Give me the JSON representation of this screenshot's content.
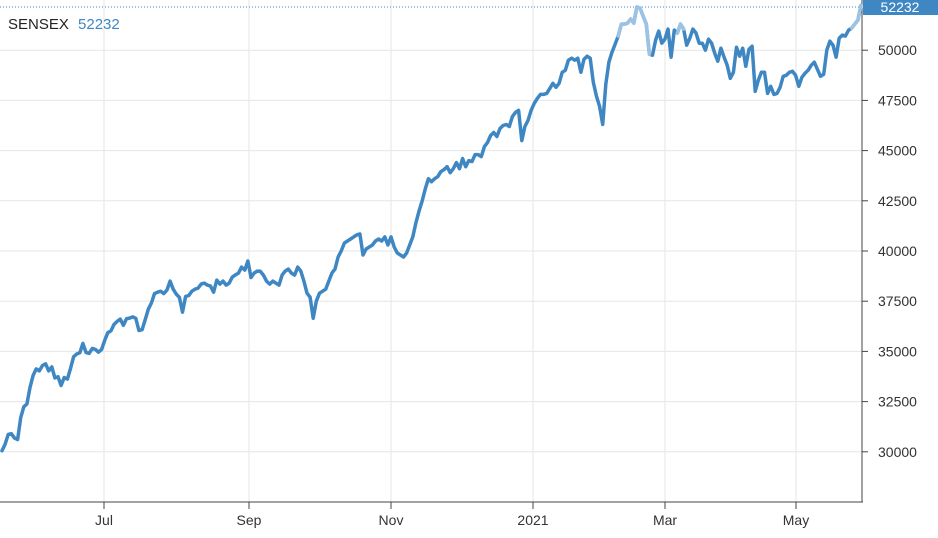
{
  "legend": {
    "symbol": "SENSEX",
    "value": "52232"
  },
  "last_price_badge": "52232",
  "colors": {
    "line": "#3f87c3",
    "line_highlight": "#9cc3e3",
    "badge_bg": "#3f87c3",
    "grid": "#e6e6e6",
    "axis": "#444444",
    "dotted_ref": "#3f87c3",
    "text": "#333333"
  },
  "chart_data": {
    "type": "line",
    "title": "",
    "xlabel": "",
    "ylabel": "",
    "ylim": [
      27500,
      52500
    ],
    "grid": true,
    "legend_placement": "top-left",
    "y_axis_side": "right",
    "y_ticks": [
      "30000",
      "32500",
      "35000",
      "37500",
      "40000",
      "42500",
      "45000",
      "47500",
      "50000"
    ],
    "x_ticks": [
      "Jul",
      "Sep",
      "Nov",
      "2021",
      "Mar",
      "May"
    ],
    "series": [
      {
        "name": "SENSEX",
        "values": [
          30050,
          30380,
          30860,
          30900,
          30690,
          30610,
          31700,
          32240,
          32380,
          33200,
          33800,
          34130,
          34030,
          34300,
          34380,
          34030,
          34230,
          33680,
          33740,
          33300,
          33700,
          33620,
          34150,
          34730,
          34870,
          34930,
          35400,
          34950,
          34900,
          35150,
          35100,
          34960,
          35100,
          35550,
          35930,
          36020,
          36340,
          36500,
          36610,
          36300,
          36630,
          36660,
          36720,
          36650,
          36040,
          36080,
          36580,
          37100,
          37410,
          37880,
          37950,
          38000,
          37880,
          38060,
          38500,
          38100,
          37850,
          37690,
          36950,
          37740,
          37780,
          38000,
          38100,
          38150,
          38350,
          38400,
          38300,
          38250,
          37950,
          38550,
          38350,
          38500,
          38300,
          38400,
          38700,
          38810,
          38900,
          39200,
          39050,
          39500,
          38680,
          38900,
          39000,
          38990,
          38800,
          38500,
          38350,
          38500,
          38400,
          38300,
          38800,
          39000,
          39100,
          38900,
          38800,
          39200,
          39000,
          38500,
          37900,
          37700,
          36650,
          37500,
          37900,
          38000,
          38100,
          38500,
          38900,
          39100,
          39700,
          40000,
          40400,
          40500,
          40600,
          40700,
          40800,
          40850,
          39800,
          40100,
          40200,
          40300,
          40500,
          40600,
          40500,
          40700,
          40300,
          40700,
          40200,
          39900,
          39800,
          39700,
          39900,
          40300,
          40700,
          41400,
          42000,
          42500,
          43100,
          43600,
          43450,
          43600,
          43700,
          43950,
          44050,
          44200,
          43900,
          44100,
          44400,
          44100,
          44600,
          44200,
          44500,
          44450,
          44800,
          44800,
          44700,
          45200,
          45400,
          45750,
          45900,
          45700,
          46100,
          46250,
          46300,
          46200,
          46700,
          46900,
          47000,
          45500,
          46200,
          46500,
          47000,
          47350,
          47600,
          47800,
          47800,
          47850,
          48100,
          48350,
          48150,
          48350,
          48900,
          49000,
          49500,
          49600,
          49500,
          49600,
          48900,
          49550,
          49700,
          49600,
          48400,
          47700,
          47200,
          46300,
          48300,
          49400,
          49900,
          50300,
          50700,
          51300,
          51300,
          51350,
          51550,
          51350,
          52150,
          52100,
          51700,
          51300,
          49800,
          49750,
          50500,
          50950,
          50350,
          50550,
          51050,
          49650,
          51000,
          50850,
          51300,
          51050,
          50250,
          50600,
          51050,
          50850,
          50350,
          50350,
          50000,
          50550,
          50350,
          49850,
          49450,
          50100,
          49650,
          49250,
          48600,
          48900,
          50150,
          49700,
          50100,
          49200,
          50050,
          50200,
          47950,
          48500,
          48900,
          48900,
          47850,
          48200,
          47800,
          47850,
          48150,
          48700,
          48750,
          48900,
          48950,
          48750,
          48200,
          48650,
          48850,
          49000,
          49250,
          49400,
          49050,
          48700,
          48800,
          50000,
          50450,
          50250,
          49650,
          50600,
          50750,
          50700,
          51000,
          51100,
          51300,
          51500,
          52232
        ]
      }
    ]
  }
}
